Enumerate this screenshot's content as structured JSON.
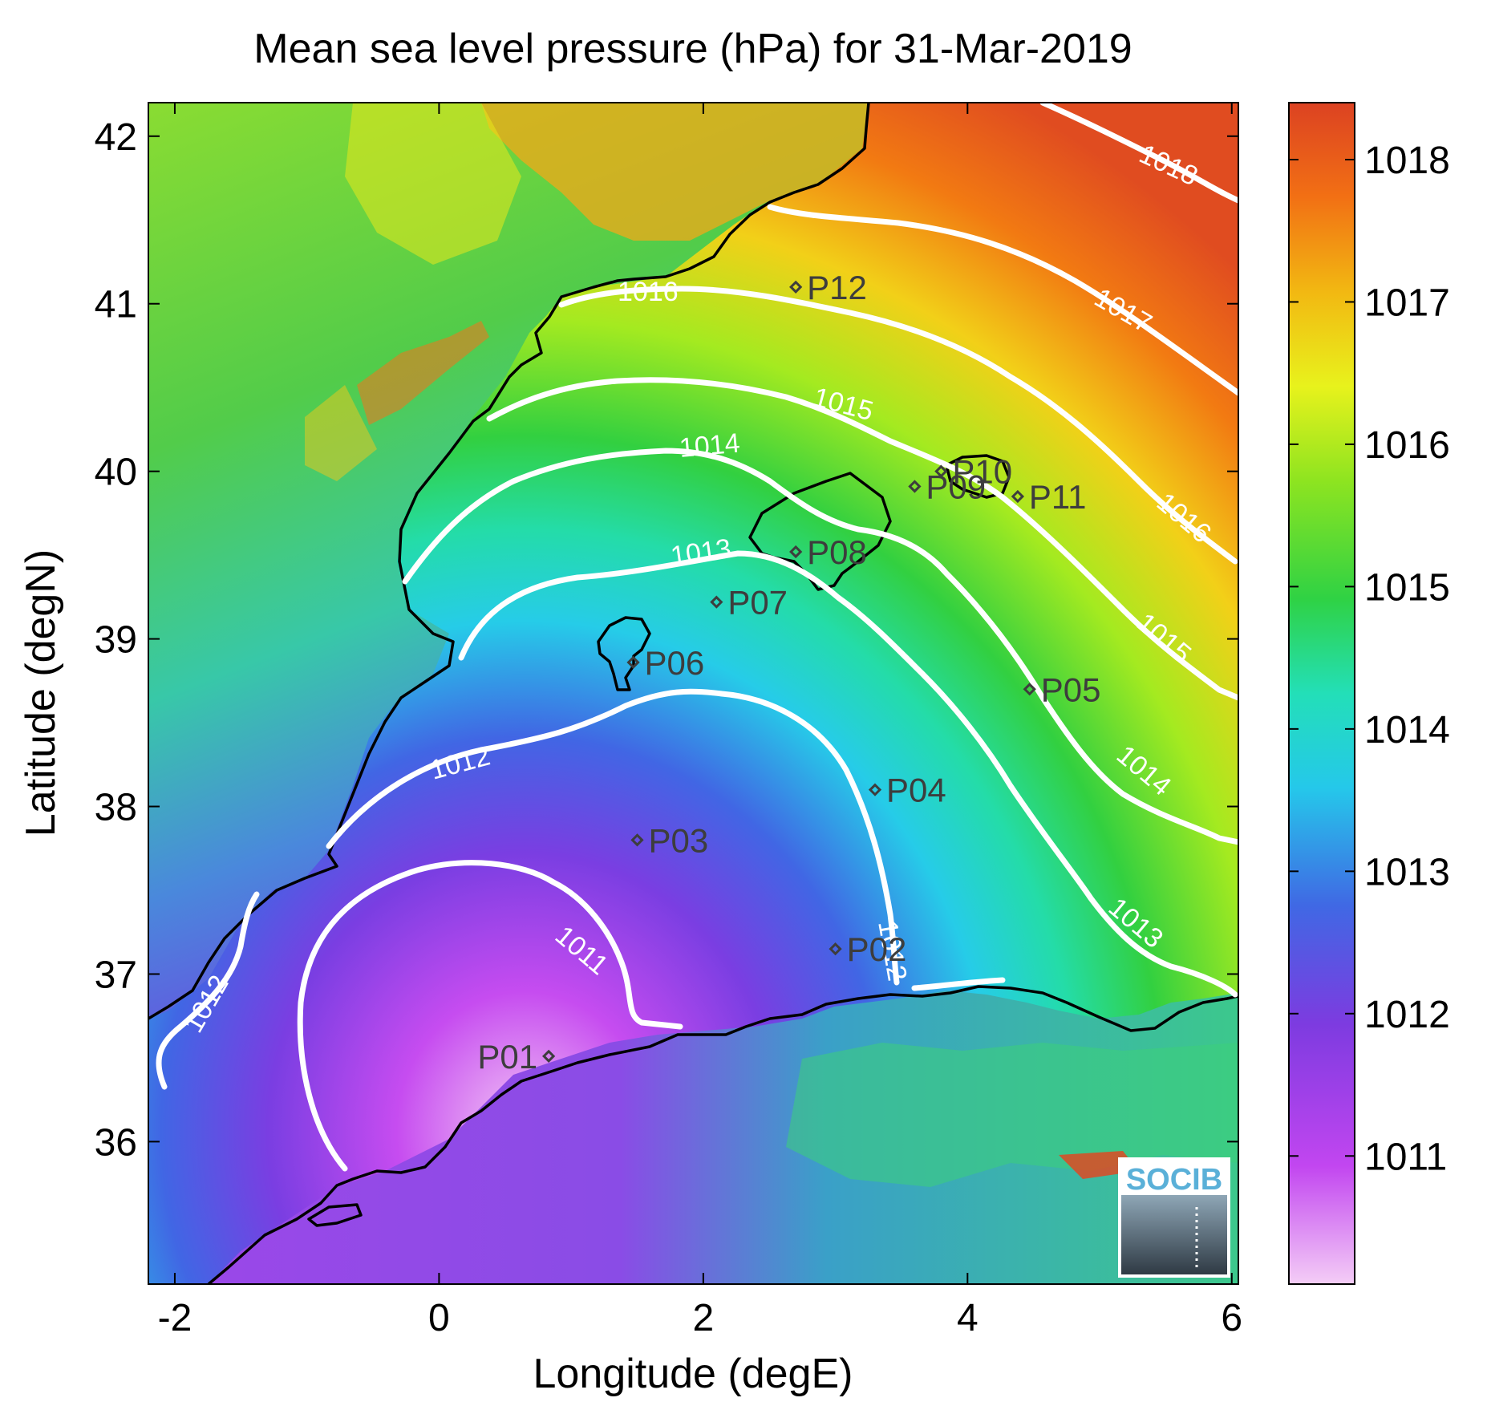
{
  "map": {
    "title": "Mean sea level pressure (hPa) for 31-Mar-2019",
    "xlabel": "Longitude (degE)",
    "ylabel": "Latitude (degN)",
    "x_ticks": [
      "-2",
      "0",
      "2",
      "4",
      "6"
    ],
    "y_ticks": [
      "36",
      "37",
      "38",
      "39",
      "40",
      "41",
      "42"
    ],
    "xlim": [
      -2.2,
      6.05
    ],
    "ylim": [
      35.15,
      42.2
    ],
    "colorbar": {
      "ticks": [
        "1011",
        "1012",
        "1013",
        "1014",
        "1015",
        "1016",
        "1017",
        "1018"
      ],
      "range": [
        1010.1,
        1018.4
      ],
      "colors": [
        "#f2c4f5",
        "#c040f0",
        "#7a3ae0",
        "#3a6ee6",
        "#22d6e6",
        "#22d890",
        "#3ad028",
        "#b8f020",
        "#f2d818",
        "#f28c10",
        "#e04a20"
      ]
    },
    "points": [
      {
        "name": "P01",
        "lon": 0.83,
        "lat": 36.51
      },
      {
        "name": "P02",
        "lon": 3.0,
        "lat": 37.15
      },
      {
        "name": "P03",
        "lon": 1.5,
        "lat": 37.8
      },
      {
        "name": "P04",
        "lon": 3.3,
        "lat": 38.1
      },
      {
        "name": "P05",
        "lon": 4.47,
        "lat": 38.7
      },
      {
        "name": "P06",
        "lon": 1.47,
        "lat": 38.86
      },
      {
        "name": "P07",
        "lon": 2.1,
        "lat": 39.22
      },
      {
        "name": "P08",
        "lon": 2.7,
        "lat": 39.52
      },
      {
        "name": "P09",
        "lon": 3.6,
        "lat": 39.91
      },
      {
        "name": "P10",
        "lon": 3.8,
        "lat": 40.0
      },
      {
        "name": "P11",
        "lon": 4.38,
        "lat": 39.85
      },
      {
        "name": "P12",
        "lon": 2.7,
        "lat": 41.1
      }
    ],
    "contour_labels": [
      "1011",
      "1012",
      "1012",
      "1012",
      "1013",
      "1013",
      "1014",
      "1014",
      "1015",
      "1015",
      "1016",
      "1016",
      "1017",
      "1018"
    ],
    "logo": "SOCIB"
  }
}
